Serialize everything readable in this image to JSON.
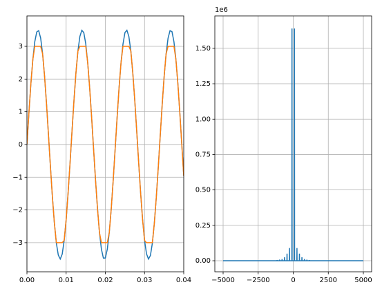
{
  "chart_data": [
    {
      "type": "line",
      "x": [
        0,
        0.0005,
        0.001,
        0.0015,
        0.002,
        0.0025,
        0.003,
        0.0035,
        0.004,
        0.0045,
        0.005,
        0.0055,
        0.006,
        0.0065,
        0.007,
        0.0075,
        0.008,
        0.0085,
        0.009,
        0.0095,
        0.01,
        0.0105,
        0.011,
        0.0115,
        0.012,
        0.0125,
        0.013,
        0.0135,
        0.014,
        0.0145,
        0.015,
        0.0155,
        0.016,
        0.0165,
        0.017,
        0.0175,
        0.018,
        0.0185,
        0.019,
        0.0195,
        0.02,
        0.0205,
        0.021,
        0.0215,
        0.022,
        0.0225,
        0.023,
        0.0235,
        0.024,
        0.0245,
        0.025,
        0.0255,
        0.026,
        0.0265,
        0.027,
        0.0275,
        0.028,
        0.0285,
        0.029,
        0.0295,
        0.03,
        0.0305,
        0.031,
        0.0315,
        0.032,
        0.0325,
        0.033,
        0.0335,
        0.034,
        0.0345,
        0.035,
        0.0355,
        0.036,
        0.0365,
        0.037,
        0.0375,
        0.038,
        0.0385,
        0.039,
        0.0395,
        0.04
      ],
      "series": [
        {
          "color": "#1f77b4",
          "values": [
            0,
            0.96,
            1.85,
            2.59,
            3.14,
            3.44,
            3.48,
            3.25,
            2.77,
            2.08,
            1.23,
            0.28,
            -0.69,
            -1.61,
            -2.4,
            -3.01,
            -3.38,
            -3.5,
            -3.35,
            -2.93,
            -2.3,
            -1.48,
            -0.56,
            0.41,
            1.35,
            2.19,
            2.85,
            3.3,
            3.49,
            3.42,
            3.08,
            2.5,
            1.73,
            0.83,
            -0.14,
            -1.09,
            -1.96,
            -2.69,
            -3.2,
            -3.47,
            -3.47,
            -3.2,
            -2.69,
            -1.97,
            -1.1,
            -0.14,
            0.82,
            1.73,
            2.5,
            3.07,
            3.42,
            3.49,
            3.3,
            2.86,
            2.19,
            1.36,
            0.42,
            -0.55,
            -1.48,
            -2.29,
            -2.93,
            -3.34,
            -3.5,
            -3.39,
            -3.01,
            -2.4,
            -1.61,
            -0.7,
            0.27,
            1.22,
            2.08,
            2.77,
            3.25,
            3.48,
            3.45,
            3.14,
            2.6,
            1.86,
            0.97,
            0.01,
            -0.96
          ]
        },
        {
          "color": "#ff7f0e",
          "values": [
            0,
            0.96,
            1.85,
            2.59,
            3,
            3,
            3,
            3,
            2.77,
            2.08,
            1.23,
            0.28,
            -0.69,
            -1.61,
            -2.4,
            -3,
            -3,
            -3,
            -3,
            -2.93,
            -2.3,
            -1.48,
            -0.56,
            0.41,
            1.35,
            2.19,
            2.85,
            3,
            3,
            3,
            3,
            2.5,
            1.73,
            0.83,
            -0.14,
            -1.09,
            -1.96,
            -2.69,
            -3,
            -3,
            -3,
            -3,
            -2.69,
            -1.97,
            -1.1,
            -0.14,
            0.82,
            1.73,
            2.5,
            3,
            3,
            3,
            3,
            2.86,
            2.19,
            1.36,
            0.42,
            -0.55,
            -1.48,
            -2.29,
            -2.93,
            -3,
            -3,
            -3,
            -3,
            -2.4,
            -1.61,
            -0.7,
            0.27,
            1.22,
            2.08,
            2.77,
            3,
            3,
            3,
            3,
            2.6,
            1.86,
            0.97,
            0.01,
            -0.96
          ]
        }
      ],
      "xlim": [
        0,
        0.04
      ],
      "ylim": [
        -3.89,
        3.93
      ],
      "xticks": [
        {
          "value": 0,
          "label": "0.00"
        },
        {
          "value": 0.01,
          "label": "0.01"
        },
        {
          "value": 0.02,
          "label": "0.02"
        },
        {
          "value": 0.03,
          "label": "0.03"
        },
        {
          "value": 0.04,
          "label": "0.04"
        }
      ],
      "yticks": [
        {
          "value": -3,
          "label": "−3"
        },
        {
          "value": -2,
          "label": "−2"
        },
        {
          "value": -1,
          "label": "−1"
        },
        0,
        1,
        2,
        3
      ],
      "grid": true
    },
    {
      "type": "line",
      "y_offset_label": "1e6",
      "x": [
        -5000,
        -1160,
        -1152,
        -1144,
        -983,
        -975,
        -967,
        -805,
        -797,
        -789,
        -628,
        -620,
        -612,
        -451,
        -443,
        -435,
        -274,
        -266,
        -258,
        -97,
        -89,
        -81,
        81,
        89,
        97,
        258,
        266,
        274,
        435,
        443,
        451,
        612,
        620,
        628,
        789,
        797,
        805,
        967,
        975,
        983,
        1144,
        1152,
        1160,
        5000
      ],
      "series": [
        {
          "color": "#1f77b4",
          "values": [
            0,
            0,
            5000,
            0,
            0,
            8000,
            0,
            0,
            12000,
            0,
            0,
            25000,
            0,
            0,
            50000,
            0,
            0,
            90000,
            0,
            0,
            1640000,
            0,
            0,
            1640000,
            0,
            0,
            90000,
            0,
            0,
            50000,
            0,
            0,
            25000,
            0,
            0,
            12000,
            0,
            0,
            8000,
            0,
            0,
            5000,
            0,
            0
          ]
        }
      ],
      "xlim": [
        -5591,
        5591
      ],
      "ylim": [
        -78000,
        1729000
      ],
      "xticks": [
        {
          "value": -5000,
          "label": "−5000"
        },
        {
          "value": -2500,
          "label": "−2500"
        },
        0,
        2500,
        5000
      ],
      "yticks": [
        {
          "value": 0,
          "label": "0.00"
        },
        {
          "value": 250000,
          "label": "0.25"
        },
        {
          "value": 500000,
          "label": "0.50"
        },
        {
          "value": 750000,
          "label": "0.75"
        },
        {
          "value": 1000000,
          "label": "1.00"
        },
        {
          "value": 1250000,
          "label": "1.25"
        },
        {
          "value": 1500000,
          "label": "1.50"
        }
      ],
      "grid": true
    }
  ]
}
